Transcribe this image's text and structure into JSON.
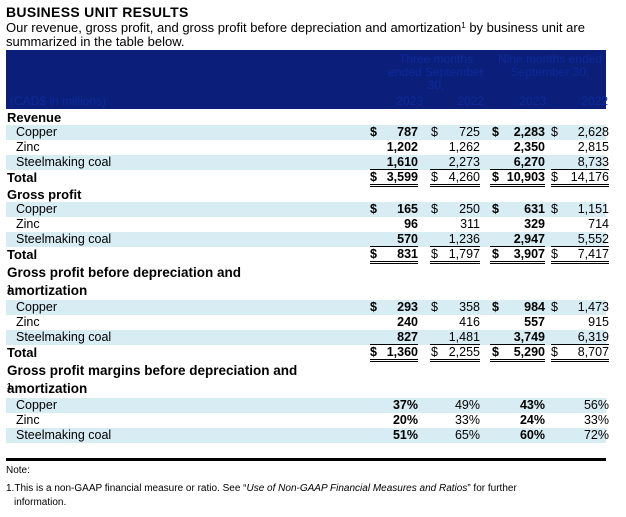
{
  "title": "BUSINESS UNIT RESULTS",
  "intro": "Our revenue, gross profit, and gross profit before depreciation and amortization",
  "intro_sup": "1",
  "intro_tail": " by business unit are summarized in the table below.",
  "header": {
    "unit": "(CAD$ in millions)",
    "group1": "Three months ended September 30,",
    "group2": "Nine months ended September 30,",
    "years": [
      "2023",
      "2022",
      "2023",
      "2022"
    ]
  },
  "sections": {
    "revenue": {
      "label": "Revenue",
      "rows": [
        {
          "label": "Copper",
          "values": [
            "787",
            "725",
            "2,283",
            "2,628"
          ]
        },
        {
          "label": "Zinc",
          "values": [
            "1,202",
            "1,262",
            "2,350",
            "2,815"
          ]
        },
        {
          "label": "Steelmaking coal",
          "values": [
            "1,610",
            "2,273",
            "6,270",
            "8,733"
          ]
        }
      ],
      "total": {
        "label": "Total",
        "values": [
          "3,599",
          "4,260",
          "10,903",
          "14,176"
        ]
      }
    },
    "gross_profit": {
      "label": "Gross profit",
      "rows": [
        {
          "label": "Copper",
          "values": [
            "165",
            "250",
            "631",
            "1,151"
          ]
        },
        {
          "label": "Zinc",
          "values": [
            "96",
            "311",
            "329",
            "714"
          ]
        },
        {
          "label": "Steelmaking coal",
          "values": [
            "570",
            "1,236",
            "2,947",
            "5,552"
          ]
        }
      ],
      "total": {
        "label": "Total",
        "values": [
          "831",
          "1,797",
          "3,907",
          "7,417"
        ]
      }
    },
    "gp_before_da": {
      "label_line1": "Gross profit before depreciation and",
      "label_line2": "amortization",
      "sup": "1",
      "rows": [
        {
          "label": "Copper",
          "values": [
            "293",
            "358",
            "984",
            "1,473"
          ]
        },
        {
          "label": "Zinc",
          "values": [
            "240",
            "416",
            "557",
            "915"
          ]
        },
        {
          "label": "Steelmaking coal",
          "values": [
            "827",
            "1,481",
            "3,749",
            "6,319"
          ]
        }
      ],
      "total": {
        "label": "Total",
        "values": [
          "1,360",
          "2,255",
          "5,290",
          "8,707"
        ]
      }
    },
    "margins": {
      "label_line1": "Gross profit margins before depreciation and",
      "label_line2": "amortization",
      "sup": "1",
      "rows": [
        {
          "label": "Copper",
          "values": [
            "37%",
            "49%",
            "43%",
            "56%"
          ]
        },
        {
          "label": "Zinc",
          "values": [
            "20%",
            "33%",
            "24%",
            "33%"
          ]
        },
        {
          "label": "Steelmaking coal",
          "values": [
            "51%",
            "65%",
            "60%",
            "72%"
          ]
        }
      ]
    }
  },
  "currency": "$",
  "note_label": "Note:",
  "note_1_prefix": "1.This is a non-GAAP financial measure or ratio. See “",
  "note_1_italic": "Use of Non-GAAP Financial Measures and Ratios",
  "note_1_suffix": "” for further",
  "note_1_line2": "information.",
  "colors": {
    "header_bg": "#0b1f7a",
    "row_shade": "#d8ecf3"
  }
}
